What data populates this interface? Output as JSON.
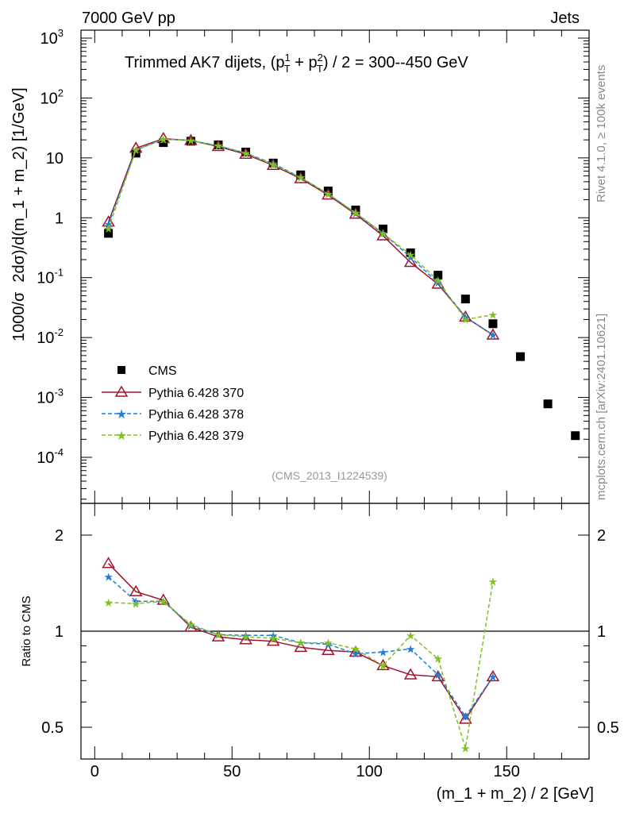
{
  "header": {
    "left": "7000 GeV pp",
    "right": "Jets",
    "side_top": "Rivet 4.1.0, ≥ 100k events",
    "side_bottom": "mcplots.cern.ch [arXiv:2401.10621]",
    "analysis_id": "(CMS_2013_I1224539)"
  },
  "colors": {
    "cms": "#000000",
    "p370": "#a0142d",
    "p378": "#1f7fd6",
    "p379": "#7ec21f"
  },
  "chart_data": [
    {
      "type": "scatter",
      "panel": "main",
      "title_parts": [
        "Trimmed AK7 dijets, (p",
        "1",
        "T",
        " + p",
        "2",
        "T",
        ") / 2 = 300--450 GeV"
      ],
      "ylabel_parts": [
        "1000/σ",
        "2dσ)/d(m_1 + m_2) [1/GeV]"
      ],
      "yscale": "log",
      "ylim": [
        2e-05,
        1500
      ],
      "xlim": [
        -5,
        180
      ],
      "y_ticks": [
        {
          "value": 0.0001,
          "base": "10",
          "exp": "-4"
        },
        {
          "value": 0.001,
          "base": "10",
          "exp": "-3"
        },
        {
          "value": 0.01,
          "base": "10",
          "exp": "-2"
        },
        {
          "value": 0.1,
          "base": "10",
          "exp": "-1"
        },
        {
          "value": 1,
          "base": "1",
          "exp": ""
        },
        {
          "value": 10,
          "base": "10",
          "exp": ""
        },
        {
          "value": 100,
          "base": "10",
          "exp": "2"
        },
        {
          "value": 1000,
          "base": "10",
          "exp": "3"
        }
      ],
      "x": [
        5,
        15,
        25,
        35,
        45,
        55,
        65,
        75,
        85,
        95,
        105,
        115,
        125,
        135,
        145,
        155,
        165,
        175
      ],
      "series": [
        {
          "name": "CMS",
          "key": "cms",
          "marker": "square",
          "values": [
            0.55,
            12,
            18,
            19,
            16.5,
            12.5,
            8.2,
            5.2,
            2.8,
            1.35,
            0.65,
            0.26,
            0.11,
            0.044,
            0.017,
            0.0048,
            0.00078,
            0.00023
          ]
        },
        {
          "name": "Pythia 6.428 370",
          "key": "p370",
          "marker": "triangle",
          "values": [
            0.85,
            14.5,
            21,
            19.5,
            15.5,
            11.5,
            7.5,
            4.5,
            2.4,
            1.15,
            0.5,
            0.18,
            0.078,
            0.022,
            0.011
          ]
        },
        {
          "name": "Pythia 6.428 378",
          "key": "p378",
          "marker": "star",
          "values": [
            0.78,
            13.5,
            20.5,
            19.5,
            16,
            12,
            8,
            4.7,
            2.5,
            1.18,
            0.55,
            0.22,
            0.082,
            0.022,
            0.011
          ]
        },
        {
          "name": "Pythia 6.428 379",
          "key": "p379",
          "marker": "star",
          "values": [
            0.66,
            13.5,
            20.5,
            19.5,
            16,
            12,
            7.7,
            4.7,
            2.5,
            1.22,
            0.55,
            0.24,
            0.09,
            0.02,
            0.024
          ]
        }
      ]
    },
    {
      "type": "line",
      "panel": "ratio",
      "ylabel": "Ratio to CMS",
      "xlabel": "(m_1 + m_2) / 2 [GeV]",
      "yscale": "log",
      "ylim": [
        0.4,
        2.4
      ],
      "y_ticks": [
        0.5,
        1,
        2
      ],
      "x_ticks": [
        0,
        50,
        100,
        150
      ],
      "reference": 1,
      "x": [
        5,
        15,
        25,
        35,
        45,
        55,
        65,
        75,
        85,
        95,
        105,
        115,
        125,
        135,
        145
      ],
      "series": [
        {
          "name": "Pythia 6.428 370",
          "key": "p370",
          "values": [
            1.63,
            1.33,
            1.25,
            1.03,
            0.96,
            0.94,
            0.93,
            0.89,
            0.87,
            0.86,
            0.78,
            0.73,
            0.72,
            0.53,
            0.72
          ]
        },
        {
          "name": "Pythia 6.428 378",
          "key": "p378",
          "values": [
            1.48,
            1.24,
            1.24,
            1.04,
            0.975,
            0.97,
            0.97,
            0.92,
            0.91,
            0.85,
            0.86,
            0.88,
            0.73,
            0.54,
            0.72
          ]
        },
        {
          "name": "Pythia 6.428 379",
          "key": "p379",
          "values": [
            1.23,
            1.22,
            1.24,
            1.05,
            0.975,
            0.96,
            0.95,
            0.92,
            0.92,
            0.88,
            0.78,
            0.97,
            0.82,
            0.43,
            1.43
          ]
        }
      ]
    }
  ]
}
